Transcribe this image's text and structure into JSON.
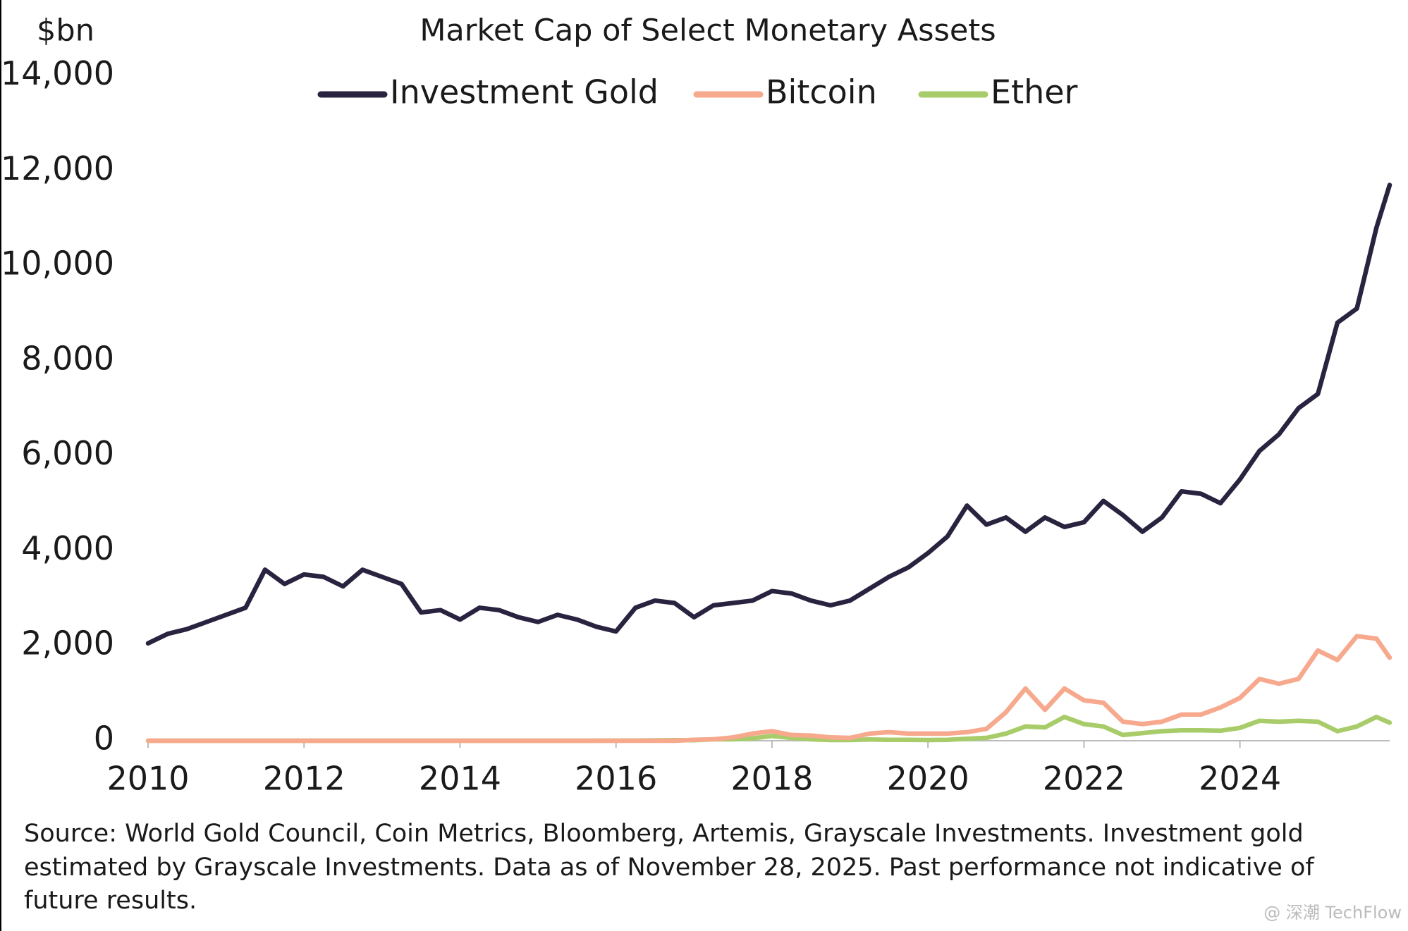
{
  "chart_data": {
    "type": "line",
    "title": "Market Cap of Select Monetary Assets",
    "y_label": "$bn",
    "x": [
      2010,
      2010.25,
      2010.5,
      2010.75,
      2011,
      2011.25,
      2011.5,
      2011.75,
      2012,
      2012.25,
      2012.5,
      2012.75,
      2013,
      2013.25,
      2013.5,
      2013.75,
      2014,
      2014.25,
      2014.5,
      2014.75,
      2015,
      2015.25,
      2015.5,
      2015.75,
      2016,
      2016.25,
      2016.5,
      2016.75,
      2017,
      2017.25,
      2017.5,
      2017.75,
      2018,
      2018.25,
      2018.5,
      2018.75,
      2019,
      2019.25,
      2019.5,
      2019.75,
      2020,
      2020.25,
      2020.5,
      2020.75,
      2021,
      2021.25,
      2021.5,
      2021.75,
      2022,
      2022.25,
      2022.5,
      2022.75,
      2023,
      2023.25,
      2023.5,
      2023.75,
      2024,
      2024.25,
      2024.5,
      2024.75,
      2025,
      2025.25,
      2025.5,
      2025.75,
      2025.92
    ],
    "series": [
      {
        "name": "Investment Gold",
        "color": "#2a2340",
        "values": [
          2050,
          2250,
          2350,
          2500,
          2650,
          2800,
          3600,
          3300,
          3500,
          3450,
          3250,
          3600,
          3450,
          3300,
          2700,
          2750,
          2550,
          2800,
          2750,
          2600,
          2500,
          2650,
          2550,
          2400,
          2300,
          2800,
          2950,
          2900,
          2600,
          2850,
          2900,
          2950,
          3150,
          3100,
          2950,
          2850,
          2950,
          3200,
          3450,
          3650,
          3950,
          4300,
          4950,
          4550,
          4700,
          4400,
          4700,
          4500,
          4600,
          5050,
          4750,
          4400,
          4700,
          5250,
          5200,
          5000,
          5500,
          6100,
          6450,
          7000,
          7300,
          8800,
          9100,
          10800,
          11700
        ]
      },
      {
        "name": "Bitcoin",
        "color": "#f7a98e",
        "values": [
          0,
          0,
          0,
          0,
          0,
          0,
          0,
          0,
          0,
          0,
          0,
          0,
          0,
          0,
          0,
          0,
          0,
          0,
          0,
          0,
          0,
          0,
          0,
          0,
          0,
          0,
          0,
          0,
          20,
          30,
          70,
          150,
          200,
          120,
          110,
          70,
          60,
          150,
          180,
          150,
          150,
          150,
          180,
          250,
          600,
          1100,
          650,
          1100,
          850,
          800,
          400,
          350,
          400,
          550,
          550,
          700,
          900,
          1300,
          1200,
          1300,
          1900,
          1700,
          2200,
          2150,
          1750
        ]
      },
      {
        "name": "Ether",
        "color": "#a8cc6a",
        "values": [
          0,
          0,
          0,
          0,
          0,
          0,
          0,
          0,
          0,
          0,
          0,
          0,
          0,
          0,
          0,
          0,
          0,
          0,
          0,
          0,
          0,
          0,
          0,
          0,
          1,
          5,
          8,
          10,
          10,
          30,
          30,
          50,
          100,
          60,
          30,
          15,
          15,
          25,
          20,
          20,
          15,
          20,
          40,
          60,
          150,
          300,
          280,
          500,
          350,
          300,
          120,
          160,
          200,
          220,
          220,
          210,
          270,
          420,
          400,
          420,
          400,
          200,
          300,
          500,
          380
        ]
      }
    ],
    "xlim": [
      2010,
      2025.92
    ],
    "xticks": [
      2010,
      2012,
      2014,
      2016,
      2018,
      2020,
      2022,
      2024
    ],
    "ylim": [
      0,
      14000
    ],
    "yticks": [
      0,
      {
        "value": 2000,
        "label": "2,000"
      },
      {
        "value": 4000,
        "label": "4,000"
      },
      {
        "value": 6000,
        "label": "6,000"
      },
      {
        "value": 8000,
        "label": "8,000"
      },
      {
        "value": 10000,
        "label": "10,000"
      },
      {
        "value": 12000,
        "label": "12,000"
      },
      {
        "value": 14000,
        "label": "14,000"
      }
    ],
    "grid": false,
    "legend": "top",
    "note": [
      "Source: World Gold Council, Coin Metrics, Bloomberg, Artemis, Grayscale Investments. Investment gold",
      "estimated by Grayscale Investments. Data as of November 28, 2025. Past performance not indicative of",
      "future results."
    ],
    "watermark": "@ 深潮 TechFlow"
  }
}
